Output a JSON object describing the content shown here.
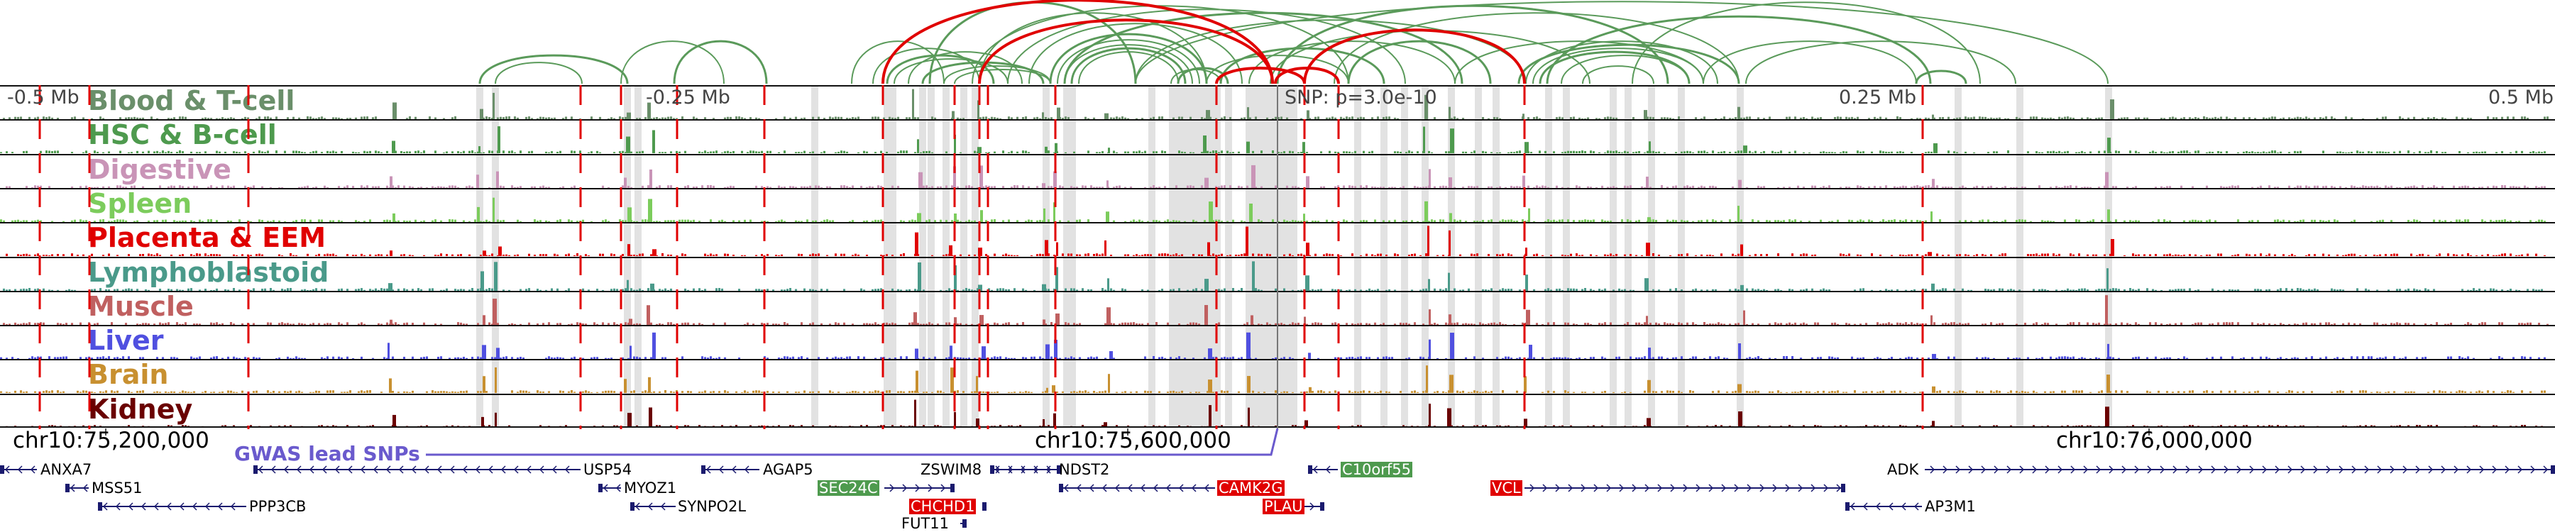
{
  "tracks": [
    {
      "label": "Blood & T-cell",
      "color": "#6a8f6a"
    },
    {
      "label": "HSC & B-cell",
      "color": "#4e9a4e"
    },
    {
      "label": "Digestive",
      "color": "#c994b7"
    },
    {
      "label": "Spleen",
      "color": "#7ccc5c"
    },
    {
      "label": "Placenta & EEM",
      "color": "#e00000"
    },
    {
      "label": "Lymphoblastoid",
      "color": "#4a9a8a"
    },
    {
      "label": "Muscle",
      "color": "#c06060"
    },
    {
      "label": "Liver",
      "color": "#5050e0"
    },
    {
      "label": "Brain",
      "color": "#c89030"
    },
    {
      "label": "Kidney",
      "color": "#6a0000"
    }
  ],
  "scale": {
    "minus_half": "-0.5 Mb",
    "minus_quarter": "-0.25 Mb",
    "snp": "SNP: p=3.0e-10",
    "plus_quarter": "0.25 Mb",
    "plus_half": "0.5 Mb"
  },
  "coordinates": [
    "chr10:75,200,000",
    "chr10:75,600,000",
    "chr10:76,000,000"
  ],
  "gwas_label": "GWAS lead SNPs",
  "genes": [
    "ANXA7",
    "USP54",
    "AGAP5",
    "ZSWIM8",
    "NDST2",
    "C10orf55",
    "ADK",
    "MSS51",
    "MYOZ1",
    "SEC24C",
    "CAMK2G",
    "VCL",
    "PPP3CB",
    "SYNPO2L",
    "CHCHD1",
    "PLAU",
    "AP3M1",
    "FUT11"
  ],
  "colors": {
    "arc": "#5a9a5a",
    "arc_highlight": "#e00000",
    "snp_line": "#6a5acd",
    "gene": "#1a1a6e",
    "dashed": "#e00000",
    "band": "#e2e2e2"
  }
}
